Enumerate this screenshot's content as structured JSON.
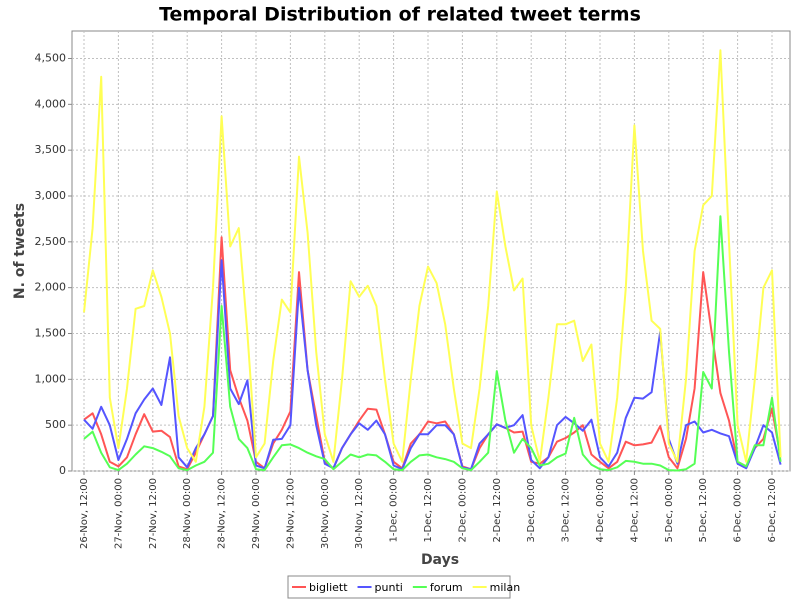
{
  "chart_data": {
    "type": "line",
    "title": "Temporal Distribution of related tweet terms",
    "x_label": "Days",
    "y_label": "N. of tweets",
    "categories": [
      "26-Nov, 12:00",
      null,
      null,
      null,
      "27-Nov, 00:00",
      null,
      null,
      null,
      "27-Nov, 12:00",
      null,
      null,
      null,
      "28-Nov, 00:00",
      null,
      null,
      null,
      "28-Nov, 12:00",
      null,
      null,
      null,
      "29-Nov, 00:00",
      null,
      null,
      null,
      "29-Nov, 12:00",
      null,
      null,
      null,
      "30-Nov, 00:00",
      null,
      null,
      null,
      "30-Nov, 12:00",
      null,
      null,
      null,
      "1-Dec, 00:00",
      null,
      null,
      null,
      "1-Dec, 12:00",
      null,
      null,
      null,
      "2-Dec, 00:00",
      null,
      null,
      null,
      "2-Dec, 12:00",
      null,
      null,
      null,
      "3-Dec, 00:00",
      null,
      null,
      null,
      "3-Dec, 12:00",
      null,
      null,
      null,
      "4-Dec, 00:00",
      null,
      null,
      null,
      "4-Dec, 12:00",
      null,
      null,
      null,
      "5-Dec, 00:00",
      null,
      null,
      null,
      "5-Dec, 12:00",
      null,
      null,
      null,
      "6-Dec, 00:00",
      null,
      null,
      null,
      "6-Dec, 12:00",
      null
    ],
    "series": [
      {
        "name": "bigliett",
        "color": "#ff5555",
        "values": [
          560,
          630,
          400,
          100,
          50,
          150,
          400,
          620,
          430,
          440,
          370,
          50,
          20,
          200,
          400,
          600,
          2550,
          1100,
          800,
          550,
          100,
          30,
          300,
          450,
          650,
          2170,
          1100,
          600,
          100,
          30,
          250,
          400,
          550,
          680,
          670,
          400,
          100,
          30,
          300,
          400,
          540,
          520,
          540,
          400,
          50,
          20,
          250,
          400,
          510,
          470,
          420,
          430,
          100,
          80,
          150,
          320,
          360,
          420,
          500,
          180,
          100,
          30,
          100,
          320,
          280,
          290,
          310,
          490,
          150,
          30,
          350,
          900,
          2170,
          1500,
          850,
          550,
          100,
          50,
          250,
          350,
          680,
          150
        ]
      },
      {
        "name": "punti",
        "color": "#5555ff",
        "values": [
          560,
          460,
          700,
          500,
          120,
          350,
          630,
          780,
          900,
          720,
          1240,
          150,
          40,
          250,
          400,
          600,
          2300,
          900,
          730,
          990,
          60,
          30,
          340,
          350,
          500,
          2000,
          1100,
          500,
          80,
          30,
          250,
          400,
          520,
          450,
          550,
          400,
          60,
          20,
          250,
          400,
          400,
          500,
          500,
          400,
          40,
          20,
          300,
          400,
          510,
          470,
          500,
          610,
          120,
          30,
          150,
          500,
          590,
          520,
          440,
          560,
          150,
          50,
          200,
          580,
          800,
          790,
          860,
          1520,
          350,
          80,
          500,
          540,
          420,
          450,
          410,
          380,
          80,
          30,
          250,
          500,
          420,
          70
        ]
      },
      {
        "name": "forum",
        "color": "#55ff55",
        "values": [
          350,
          430,
          200,
          40,
          10,
          80,
          180,
          270,
          250,
          210,
          160,
          30,
          10,
          60,
          100,
          200,
          1800,
          700,
          350,
          250,
          20,
          10,
          150,
          280,
          290,
          250,
          200,
          160,
          130,
          20,
          100,
          180,
          150,
          180,
          170,
          100,
          20,
          10,
          100,
          170,
          180,
          150,
          130,
          100,
          30,
          10,
          100,
          200,
          1090,
          550,
          200,
          350,
          250,
          60,
          80,
          150,
          190,
          580,
          180,
          70,
          20,
          10,
          40,
          110,
          100,
          80,
          80,
          60,
          10,
          5,
          20,
          80,
          1080,
          900,
          2780,
          1300,
          100,
          50,
          280,
          280,
          800,
          100
        ]
      },
      {
        "name": "milan",
        "color": "#ffff55",
        "values": [
          1730,
          2650,
          4300,
          800,
          250,
          900,
          1770,
          1800,
          2190,
          1900,
          1500,
          600,
          250,
          100,
          700,
          2000,
          3870,
          2450,
          2650,
          1500,
          150,
          300,
          1200,
          1870,
          1730,
          3430,
          2600,
          1300,
          400,
          100,
          1000,
          2070,
          1900,
          2020,
          1800,
          1000,
          300,
          100,
          1000,
          1800,
          2230,
          2050,
          1600,
          900,
          300,
          250,
          900,
          1800,
          3050,
          2450,
          1970,
          2100,
          500,
          100,
          800,
          1600,
          1600,
          1640,
          1200,
          1380,
          300,
          100,
          800,
          2000,
          3770,
          2400,
          1640,
          1550,
          300,
          100,
          1000,
          2400,
          2900,
          3000,
          4590,
          2500,
          500,
          100,
          1000,
          2000,
          2190,
          150
        ]
      }
    ],
    "ylim": [
      0,
      4800
    ],
    "yticks": [
      0,
      500,
      {
        "value": 1000,
        "label": "1,000"
      },
      {
        "value": 1500,
        "label": "1,500"
      },
      {
        "value": 2000,
        "label": "2,000"
      },
      {
        "value": 2500,
        "label": "2,500"
      },
      {
        "value": 3000,
        "label": "3,000"
      },
      {
        "value": 3500,
        "label": "3,500"
      },
      {
        "value": 4000,
        "label": "4,000"
      },
      {
        "value": 4500,
        "label": "4,500"
      }
    ],
    "grid": true,
    "legend": "bottom"
  }
}
